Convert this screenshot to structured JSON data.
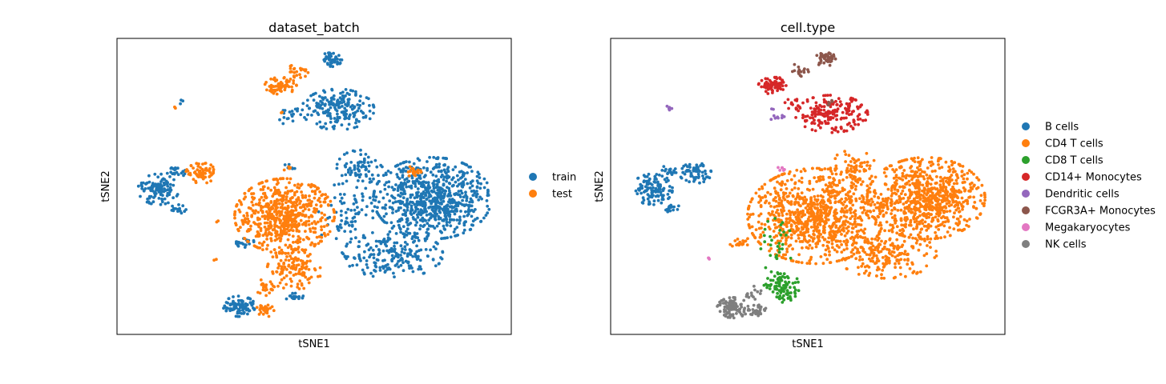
{
  "chart_data": [
    {
      "type": "scatter",
      "title": "dataset_batch",
      "xlabel": "tSNE1",
      "ylabel": "tSNE2",
      "xlim": [
        0,
        100
      ],
      "ylim": [
        0,
        100
      ],
      "grid": false,
      "legend_position": "right",
      "series": [
        {
          "name": "train",
          "color": "#1f77b4",
          "clusters": [
            {
              "cx": 54.5,
              "cy": 93.0,
              "rx": 2.2,
              "ry": 2.2,
              "n": 45
            },
            {
              "cx": 56.0,
              "cy": 76.0,
              "rx": 8.0,
              "ry": 6.0,
              "n": 190
            },
            {
              "cx": 44.5,
              "cy": 74.0,
              "rx": 3.5,
              "ry": 3.0,
              "n": 18
            },
            {
              "cx": 16.0,
              "cy": 78.5,
              "rx": 0.8,
              "ry": 0.6,
              "n": 3
            },
            {
              "cx": 10.5,
              "cy": 49.0,
              "rx": 4.5,
              "ry": 4.5,
              "n": 110
            },
            {
              "cx": 15.0,
              "cy": 55.0,
              "rx": 2.0,
              "ry": 2.0,
              "n": 20
            },
            {
              "cx": 15.5,
              "cy": 42.5,
              "rx": 1.8,
              "ry": 1.5,
              "n": 15
            },
            {
              "cx": 32.0,
              "cy": 31.0,
              "rx": 2.5,
              "ry": 1.5,
              "n": 22
            },
            {
              "cx": 31.0,
              "cy": 9.5,
              "rx": 3.5,
              "ry": 3.0,
              "n": 95
            },
            {
              "cx": 45.0,
              "cy": 12.5,
              "rx": 2.0,
              "ry": 1.5,
              "n": 20
            },
            {
              "cx": 61.5,
              "cy": 56.5,
              "rx": 5.0,
              "ry": 5.0,
              "n": 70
            },
            {
              "cx": 80.0,
              "cy": 46.0,
              "rx": 13.0,
              "ry": 12.0,
              "n": 760
            },
            {
              "cx": 70.0,
              "cy": 27.0,
              "rx": 11.0,
              "ry": 7.0,
              "n": 200
            },
            {
              "cx": 43.5,
              "cy": 56.5,
              "rx": 1.5,
              "ry": 1.0,
              "n": 6
            },
            {
              "cx": 58.0,
              "cy": 40.0,
              "rx": 6.0,
              "ry": 12.0,
              "n": 80
            }
          ]
        },
        {
          "name": "test",
          "color": "#ff7f0e",
          "clusters": [
            {
              "cx": 41.5,
              "cy": 84.0,
              "rx": 3.5,
              "ry": 2.5,
              "n": 70
            },
            {
              "cx": 46.0,
              "cy": 89.0,
              "rx": 2.5,
              "ry": 2.0,
              "n": 22
            },
            {
              "cx": 14.5,
              "cy": 76.5,
              "rx": 0.5,
              "ry": 0.5,
              "n": 2
            },
            {
              "cx": 42.0,
              "cy": 75.0,
              "rx": 0.4,
              "ry": 0.4,
              "n": 2
            },
            {
              "cx": 21.5,
              "cy": 54.5,
              "rx": 3.5,
              "ry": 3.0,
              "n": 65
            },
            {
              "cx": 42.5,
              "cy": 40.0,
              "rx": 11.0,
              "ry": 11.0,
              "n": 620
            },
            {
              "cx": 45.0,
              "cy": 22.0,
              "rx": 6.0,
              "ry": 6.0,
              "n": 120
            },
            {
              "cx": 38.0,
              "cy": 16.0,
              "rx": 2.5,
              "ry": 2.5,
              "n": 25
            },
            {
              "cx": 37.5,
              "cy": 8.0,
              "rx": 2.0,
              "ry": 2.0,
              "n": 30
            },
            {
              "cx": 25.5,
              "cy": 38.0,
              "rx": 0.4,
              "ry": 0.4,
              "n": 2
            },
            {
              "cx": 25.0,
              "cy": 25.5,
              "rx": 0.5,
              "ry": 0.5,
              "n": 2
            },
            {
              "cx": 43.0,
              "cy": 56.0,
              "rx": 1.0,
              "ry": 0.8,
              "n": 5
            },
            {
              "cx": 75.0,
              "cy": 55.0,
              "rx": 2.0,
              "ry": 1.5,
              "n": 20
            }
          ]
        }
      ]
    },
    {
      "type": "scatter",
      "title": "cell.type",
      "xlabel": "tSNE1",
      "ylabel": "tSNE2",
      "xlim": [
        0,
        100
      ],
      "ylim": [
        0,
        100
      ],
      "grid": false,
      "legend_position": "right",
      "series": [
        {
          "name": "B cells",
          "color": "#1f77b4",
          "clusters": [
            {
              "cx": 10.5,
              "cy": 49.0,
              "rx": 4.5,
              "ry": 4.5,
              "n": 110
            },
            {
              "cx": 15.0,
              "cy": 55.0,
              "rx": 2.0,
              "ry": 2.0,
              "n": 20
            },
            {
              "cx": 21.5,
              "cy": 54.5,
              "rx": 3.5,
              "ry": 3.0,
              "n": 65
            },
            {
              "cx": 15.5,
              "cy": 42.5,
              "rx": 1.8,
              "ry": 1.5,
              "n": 15
            }
          ]
        },
        {
          "name": "CD4 T cells",
          "color": "#ff7f0e",
          "clusters": [
            {
              "cx": 52.0,
              "cy": 40.0,
              "rx": 15.0,
              "ry": 14.0,
              "n": 900
            },
            {
              "cx": 80.0,
              "cy": 46.0,
              "rx": 13.0,
              "ry": 12.0,
              "n": 760
            },
            {
              "cx": 70.0,
              "cy": 27.0,
              "rx": 11.0,
              "ry": 7.0,
              "n": 200
            },
            {
              "cx": 61.5,
              "cy": 56.5,
              "rx": 5.0,
              "ry": 5.0,
              "n": 70
            },
            {
              "cx": 33.0,
              "cy": 31.0,
              "rx": 2.5,
              "ry": 1.5,
              "n": 20
            }
          ]
        },
        {
          "name": "CD8 T cells",
          "color": "#2ca02c",
          "clusters": [
            {
              "cx": 43.5,
              "cy": 16.5,
              "rx": 4.0,
              "ry": 3.5,
              "n": 80
            },
            {
              "cx": 45.0,
              "cy": 12.5,
              "rx": 2.5,
              "ry": 2.0,
              "n": 20
            },
            {
              "cx": 42.0,
              "cy": 30.0,
              "rx": 4.0,
              "ry": 8.0,
              "n": 30
            }
          ]
        },
        {
          "name": "CD14+ Monocytes",
          "color": "#d62728",
          "clusters": [
            {
              "cx": 56.0,
              "cy": 74.5,
              "rx": 8.0,
              "ry": 5.5,
              "n": 190
            },
            {
              "cx": 41.5,
              "cy": 84.0,
              "rx": 3.5,
              "ry": 2.5,
              "n": 70
            },
            {
              "cx": 46.5,
              "cy": 78.0,
              "rx": 2.0,
              "ry": 2.0,
              "n": 12
            }
          ]
        },
        {
          "name": "Dendritic cells",
          "color": "#9467bd",
          "clusters": [
            {
              "cx": 15.0,
              "cy": 76.5,
              "rx": 1.2,
              "ry": 0.6,
              "n": 5
            },
            {
              "cx": 42.5,
              "cy": 73.5,
              "rx": 2.0,
              "ry": 1.2,
              "n": 8
            },
            {
              "cx": 41.0,
              "cy": 76.0,
              "rx": 0.4,
              "ry": 0.4,
              "n": 2
            }
          ]
        },
        {
          "name": "FCGR3A+ Monocytes",
          "color": "#8c564b",
          "clusters": [
            {
              "cx": 54.5,
              "cy": 93.0,
              "rx": 2.2,
              "ry": 2.2,
              "n": 45
            },
            {
              "cx": 47.5,
              "cy": 89.0,
              "rx": 2.5,
              "ry": 2.0,
              "n": 15
            },
            {
              "cx": 56.0,
              "cy": 78.5,
              "rx": 1.5,
              "ry": 1.0,
              "n": 6
            }
          ]
        },
        {
          "name": "Megakaryocytes",
          "color": "#e377c2",
          "clusters": [
            {
              "cx": 43.0,
              "cy": 56.0,
              "rx": 1.0,
              "ry": 0.8,
              "n": 6
            },
            {
              "cx": 25.0,
              "cy": 25.5,
              "rx": 0.5,
              "ry": 0.5,
              "n": 3
            }
          ]
        },
        {
          "name": "NK cells",
          "color": "#7f7f7f",
          "clusters": [
            {
              "cx": 31.0,
              "cy": 9.0,
              "rx": 3.5,
              "ry": 3.0,
              "n": 95
            },
            {
              "cx": 37.5,
              "cy": 8.0,
              "rx": 2.0,
              "ry": 2.0,
              "n": 30
            },
            {
              "cx": 36.0,
              "cy": 14.0,
              "rx": 2.0,
              "ry": 2.0,
              "n": 15
            }
          ]
        }
      ]
    }
  ]
}
